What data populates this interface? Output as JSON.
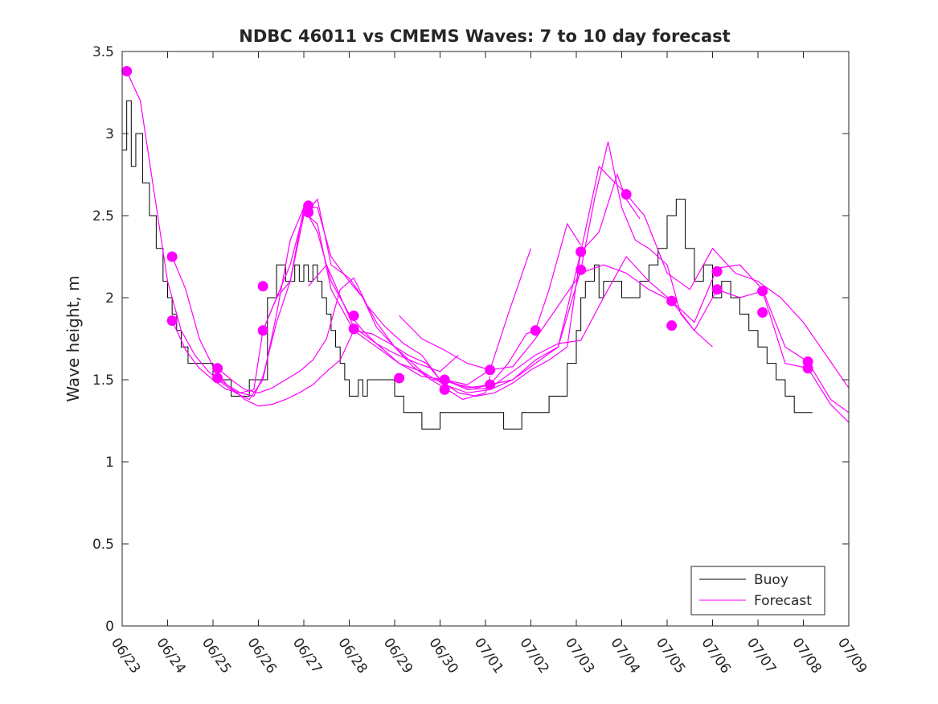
{
  "chart_data": {
    "type": "line",
    "title": "NDBC 46011 vs CMEMS Waves: 7 to 10 day forecast",
    "xlabel": "",
    "ylabel": "Wave height, m",
    "x_ticks": [
      "06/23",
      "06/24",
      "06/25",
      "06/26",
      "06/27",
      "06/28",
      "06/29",
      "06/30",
      "07/01",
      "07/02",
      "07/03",
      "07/04",
      "07/05",
      "07/06",
      "07/07",
      "07/08",
      "07/09"
    ],
    "y_ticks": [
      "0",
      "0.5",
      "1",
      "1.5",
      "2",
      "2.5",
      "3",
      "3.5"
    ],
    "xlim": [
      0,
      16
    ],
    "ylim": [
      0,
      3.5
    ],
    "grid": false,
    "legend": {
      "position": "bottom-right",
      "entries": [
        "Buoy",
        "Forecast"
      ]
    },
    "colors": {
      "buoy": "#000000",
      "forecast": "#ff00ff"
    },
    "series": [
      {
        "name": "Buoy",
        "x": [
          0,
          0.1,
          0.2,
          0.3,
          0.45,
          0.6,
          0.75,
          0.9,
          1.0,
          1.1,
          1.2,
          1.3,
          1.45,
          1.6,
          1.8,
          2.0,
          2.2,
          2.4,
          2.6,
          2.8,
          3.0,
          3.2,
          3.4,
          3.6,
          3.8,
          3.9,
          4.0,
          4.1,
          4.2,
          4.3,
          4.4,
          4.5,
          4.6,
          4.7,
          4.8,
          4.9,
          5.0,
          5.1,
          5.2,
          5.3,
          5.4,
          5.6,
          5.8,
          6.0,
          6.2,
          6.4,
          6.6,
          6.8,
          7.0,
          7.2,
          7.4,
          7.6,
          7.8,
          8.0,
          8.2,
          8.4,
          8.6,
          8.8,
          9.0,
          9.2,
          9.4,
          9.6,
          9.8,
          10.0,
          10.1,
          10.2,
          10.3,
          10.4,
          10.5,
          10.6,
          10.8,
          11.0,
          11.2,
          11.4,
          11.6,
          11.8,
          12.0,
          12.2,
          12.4,
          12.6,
          12.8,
          13.0,
          13.2,
          13.4,
          13.6,
          13.8,
          14.0,
          14.2,
          14.4,
          14.6,
          14.8,
          15.0,
          15.2
        ],
        "y": [
          2.9,
          3.2,
          2.8,
          3.0,
          2.7,
          2.5,
          2.3,
          2.1,
          2.0,
          1.9,
          1.8,
          1.7,
          1.6,
          1.6,
          1.6,
          1.5,
          1.5,
          1.4,
          1.4,
          1.5,
          1.5,
          2.0,
          2.2,
          2.1,
          2.2,
          2.1,
          2.2,
          2.1,
          2.2,
          2.1,
          2.0,
          1.9,
          1.8,
          1.7,
          1.6,
          1.5,
          1.4,
          1.4,
          1.5,
          1.4,
          1.5,
          1.5,
          1.5,
          1.4,
          1.3,
          1.3,
          1.2,
          1.2,
          1.3,
          1.3,
          1.3,
          1.3,
          1.3,
          1.3,
          1.3,
          1.2,
          1.2,
          1.3,
          1.3,
          1.3,
          1.4,
          1.4,
          1.6,
          1.8,
          2.0,
          2.1,
          2.1,
          2.2,
          2.0,
          2.1,
          2.1,
          2.0,
          2.0,
          2.1,
          2.2,
          2.3,
          2.5,
          2.6,
          2.3,
          2.1,
          2.2,
          2.0,
          2.1,
          2.0,
          1.9,
          1.8,
          1.7,
          1.6,
          1.5,
          1.4,
          1.3,
          1.3,
          1.3
        ]
      },
      {
        "name": "Forecast",
        "traces": [
          {
            "x": [
              0.1,
              0.4,
              0.7,
              1.0,
              1.3,
              1.6,
              1.9,
              2.2,
              2.5,
              2.8,
              3.1,
              3.4,
              3.7,
              4.0,
              4.3,
              4.6,
              5.0,
              5.3,
              5.6,
              6.0,
              6.5,
              7.0,
              7.4
            ],
            "y": [
              3.38,
              3.2,
              2.65,
              2.1,
              1.8,
              1.65,
              1.55,
              1.48,
              1.42,
              1.38,
              1.5,
              1.9,
              2.35,
              2.55,
              2.4,
              2.1,
              1.9,
              1.8,
              1.72,
              1.66,
              1.6,
              1.55,
              1.65
            ]
          },
          {
            "x": [
              1.1,
              1.4,
              1.7,
              2.0,
              2.3,
              2.6,
              2.9,
              3.1,
              3.4,
              3.7,
              4.0,
              4.3,
              4.6,
              5.0,
              5.3,
              5.6,
              6.0,
              6.4,
              6.8,
              7.1,
              7.5,
              8.0,
              8.1
            ],
            "y": [
              2.25,
              2.05,
              1.75,
              1.58,
              1.47,
              1.42,
              1.4,
              1.52,
              1.85,
              2.1,
              2.55,
              2.55,
              2.25,
              2.1,
              2.0,
              1.85,
              1.7,
              1.58,
              1.5,
              1.45,
              1.38,
              1.42,
              1.52
            ]
          },
          {
            "x": [
              1.1,
              1.4,
              1.7,
              2.0,
              2.3,
              2.6,
              2.9,
              3.1,
              3.4,
              3.7,
              4.0,
              4.3,
              4.6,
              5.0,
              5.3,
              5.6,
              6.0,
              6.4,
              6.8,
              7.1,
              7.6,
              8.1,
              8.5,
              9.0
            ],
            "y": [
              1.86,
              1.68,
              1.57,
              1.5,
              1.44,
              1.42,
              1.44,
              1.8,
              2.0,
              2.1,
              2.5,
              2.6,
              2.2,
              2.12,
              2.0,
              1.82,
              1.7,
              1.6,
              1.5,
              1.5,
              1.47,
              1.56,
              1.9,
              2.3
            ]
          },
          {
            "x": [
              2.1,
              2.4,
              2.7,
              3.0,
              3.3,
              3.6,
              3.9,
              4.2,
              4.5,
              4.8,
              5.1,
              5.4,
              5.8,
              6.2,
              6.6,
              7.0,
              7.4,
              7.8,
              8.1,
              8.5,
              8.9,
              9.1,
              9.4,
              9.8,
              10.1
            ],
            "y": [
              1.57,
              1.5,
              1.44,
              1.42,
              1.45,
              1.5,
              1.55,
              1.62,
              1.75,
              2.05,
              2.12,
              1.95,
              1.82,
              1.72,
              1.65,
              1.5,
              1.47,
              1.45,
              1.47,
              1.6,
              1.78,
              1.8,
              2.05,
              2.45,
              2.32
            ]
          },
          {
            "x": [
              2.1,
              2.4,
              2.7,
              3.0,
              3.3,
              3.6,
              3.9,
              4.2,
              4.5,
              4.8,
              5.1,
              5.5,
              5.9,
              6.3,
              6.7,
              7.0,
              7.4,
              7.8,
              8.2,
              8.6,
              9.0,
              9.4,
              9.8,
              10.1,
              10.5,
              10.9,
              11.1,
              11.4
            ],
            "y": [
              1.51,
              1.45,
              1.38,
              1.34,
              1.35,
              1.38,
              1.42,
              1.47,
              1.55,
              1.62,
              1.8,
              1.78,
              1.72,
              1.65,
              1.6,
              1.5,
              1.42,
              1.4,
              1.42,
              1.48,
              1.56,
              1.62,
              1.7,
              2.28,
              2.4,
              2.75,
              2.6,
              2.48
            ]
          },
          {
            "x": [
              3.1,
              3.4,
              3.7,
              4.0,
              4.3,
              4.6,
              5.1,
              5.6,
              6.1,
              6.6,
              7.1,
              7.6,
              8.1,
              8.6,
              9.1,
              9.6,
              10.1,
              10.4,
              10.7,
              11.0,
              11.3,
              11.6,
              12.0,
              12.3,
              12.6,
              13.0
            ],
            "y": [
              1.8,
              2.0,
              2.2,
              2.52,
              2.45,
              2.05,
              1.8,
              1.7,
              1.6,
              1.52,
              1.5,
              1.45,
              1.47,
              1.5,
              1.6,
              1.7,
              2.17,
              2.6,
              2.95,
              2.55,
              2.35,
              2.3,
              2.2,
              1.9,
              1.8,
              1.7
            ]
          },
          {
            "x": [
              4.1,
              4.5,
              5.1,
              5.6,
              6.1,
              6.6,
              7.1,
              7.6,
              8.1,
              8.6,
              9.1,
              9.6,
              10.1,
              10.5,
              11.1,
              11.5,
              12.0,
              12.5,
              13.0,
              13.5,
              14.0,
              14.5,
              15.0,
              15.5,
              16.0
            ],
            "y": [
              2.07,
              2.2,
              1.82,
              1.72,
              1.6,
              1.55,
              1.47,
              1.42,
              1.44,
              1.5,
              1.62,
              1.7,
              2.28,
              2.8,
              2.63,
              2.5,
              2.15,
              2.05,
              2.3,
              2.15,
              2.1,
              2.0,
              1.85,
              1.65,
              1.45
            ]
          },
          {
            "x": [
              6.1,
              6.6,
              7.1,
              7.6,
              8.1,
              8.6,
              9.1,
              9.6,
              10.1,
              10.6,
              11.1,
              11.6,
              12.1,
              12.6,
              13.1,
              13.6,
              14.1,
              14.6,
              15.1,
              15.6,
              16.0
            ],
            "y": [
              1.89,
              1.75,
              1.68,
              1.6,
              1.56,
              1.58,
              1.75,
              1.95,
              2.15,
              2.2,
              2.15,
              2.05,
              1.98,
              1.85,
              2.18,
              2.2,
              2.05,
              1.7,
              1.61,
              1.38,
              1.3
            ]
          },
          {
            "x": [
              7.1,
              7.6,
              8.1,
              8.6,
              9.1,
              9.6,
              10.1,
              10.6,
              11.1,
              11.6,
              12.1,
              12.6,
              13.1,
              13.6,
              14.1,
              14.6,
              15.1,
              15.6,
              16.0
            ],
            "y": [
              1.5,
              1.44,
              1.45,
              1.55,
              1.65,
              1.72,
              1.74,
              2.0,
              2.25,
              2.1,
              1.98,
              1.8,
              2.05,
              2.0,
              2.04,
              1.6,
              1.57,
              1.35,
              1.24
            ]
          }
        ],
        "markers": {
          "x": [
            0.1,
            1.1,
            1.1,
            2.1,
            2.1,
            3.1,
            3.1,
            4.1,
            4.1,
            5.1,
            5.1,
            6.1,
            7.1,
            7.1,
            8.1,
            8.1,
            9.1,
            10.1,
            10.1,
            11.1,
            12.1,
            12.1,
            13.1,
            13.1,
            14.1,
            14.1,
            15.1,
            15.1
          ],
          "y": [
            3.38,
            2.25,
            1.86,
            1.57,
            1.51,
            2.07,
            1.8,
            2.56,
            2.52,
            1.89,
            1.81,
            1.51,
            1.5,
            1.44,
            1.56,
            1.47,
            1.8,
            2.28,
            2.17,
            2.63,
            1.98,
            1.83,
            2.16,
            2.05,
            2.04,
            1.91,
            1.61,
            1.57
          ]
        }
      }
    ]
  }
}
